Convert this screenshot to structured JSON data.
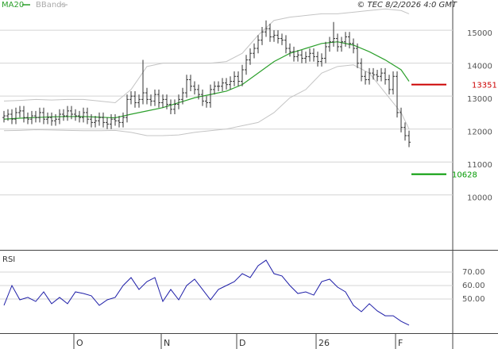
{
  "chart_data": [
    {
      "type": "ohlc",
      "source": "© TEC 8/2/2026 4:0 GMT",
      "open": [
        12350,
        12400,
        12450,
        12300,
        12500,
        12550,
        12350,
        12300,
        12400,
        12350,
        12500,
        12300,
        12350,
        12250,
        12300,
        12450,
        12400,
        12550,
        12450,
        12400,
        12350,
        12500,
        12300,
        12200,
        12250,
        12350,
        12200,
        12150,
        12300,
        12250,
        12200,
        12350,
        12900,
        13000,
        12800,
        12900,
        13100,
        12900,
        12850,
        13050,
        12800,
        12900,
        12750,
        12600,
        12750,
        12900,
        13100,
        13500,
        13300,
        13200,
        13050,
        12850,
        12800,
        13200,
        13300,
        13300,
        13400,
        13350,
        13450,
        13600,
        13450,
        13800,
        14100,
        14300,
        14450,
        14700,
        14950,
        15050,
        14800,
        14850,
        14750,
        14700,
        14450,
        14350,
        14200,
        14250,
        14150,
        14200,
        14300,
        14200,
        14050,
        14150,
        14500,
        14650,
        14750,
        14500,
        14650,
        14800,
        14600,
        14450,
        14000,
        13600,
        13500,
        13700,
        13650,
        13600,
        13700,
        13500,
        13200,
        13600,
        12500,
        12050,
        11800
      ],
      "high": [
        12550,
        12600,
        12600,
        12650,
        12700,
        12700,
        12500,
        12550,
        12550,
        12650,
        12650,
        12500,
        12500,
        12450,
        12600,
        12600,
        12700,
        12700,
        12600,
        12550,
        12650,
        12650,
        12450,
        12400,
        12500,
        12500,
        12350,
        12450,
        12450,
        12400,
        12500,
        13050,
        13150,
        13150,
        13050,
        14100,
        13250,
        13050,
        13200,
        13200,
        13050,
        13050,
        12900,
        12900,
        13050,
        13250,
        13650,
        13650,
        13450,
        13350,
        13200,
        13000,
        13350,
        13450,
        13450,
        13550,
        13550,
        13600,
        13750,
        13750,
        13950,
        14250,
        14450,
        14600,
        14850,
        15100,
        15300,
        15200,
        15000,
        15000,
        14900,
        14850,
        14600,
        14500,
        14400,
        14400,
        14350,
        14450,
        14450,
        14350,
        14300,
        14650,
        14800,
        15250,
        14900,
        14800,
        14950,
        14950,
        14750,
        14600,
        14150,
        13750,
        13850,
        13850,
        13800,
        13850,
        13850,
        13650,
        13750,
        13750,
        12650,
        12200,
        11950
      ],
      "low": [
        12200,
        12250,
        12150,
        12150,
        12350,
        12200,
        12150,
        12150,
        12200,
        12200,
        12150,
        12150,
        12100,
        12100,
        12150,
        12250,
        12250,
        12300,
        12250,
        12200,
        12200,
        12150,
        12050,
        12050,
        12100,
        12050,
        12000,
        12000,
        12100,
        12050,
        12050,
        12200,
        12750,
        12650,
        12650,
        12750,
        12750,
        12700,
        12700,
        12650,
        12650,
        12600,
        12450,
        12450,
        12600,
        12750,
        12950,
        13150,
        13050,
        12900,
        12700,
        12650,
        12650,
        13050,
        13150,
        13150,
        13200,
        13200,
        13300,
        13300,
        13300,
        13650,
        13950,
        14150,
        14300,
        14550,
        14800,
        14650,
        14650,
        14600,
        14550,
        14300,
        14200,
        14050,
        14050,
        14000,
        14000,
        14050,
        14050,
        13900,
        13900,
        14000,
        14350,
        14500,
        14350,
        14350,
        14500,
        14450,
        14300,
        13850,
        13450,
        13350,
        13350,
        13500,
        13450,
        13450,
        13350,
        13050,
        13050,
        12350,
        11900,
        11650,
        11450
      ],
      "close": [
        12400,
        12450,
        12300,
        12500,
        12550,
        12350,
        12300,
        12400,
        12350,
        12500,
        12300,
        12350,
        12250,
        12300,
        12450,
        12400,
        12550,
        12450,
        12400,
        12350,
        12500,
        12300,
        12200,
        12250,
        12350,
        12200,
        12150,
        12300,
        12250,
        12200,
        12350,
        12900,
        13000,
        12800,
        12900,
        13100,
        12900,
        12850,
        13050,
        12800,
        12900,
        12750,
        12600,
        12750,
        12900,
        13100,
        13500,
        13300,
        13200,
        13050,
        12850,
        12800,
        13200,
        13300,
        13300,
        13400,
        13350,
        13450,
        13600,
        13450,
        13800,
        14100,
        14300,
        14450,
        14700,
        14950,
        15050,
        14800,
        14850,
        14750,
        14700,
        14450,
        14350,
        14200,
        14250,
        14150,
        14200,
        14300,
        14200,
        14050,
        14150,
        14500,
        14650,
        14750,
        14500,
        14650,
        14800,
        14600,
        14450,
        14000,
        13600,
        13500,
        13700,
        13650,
        13600,
        13700,
        13500,
        13200,
        13600,
        12500,
        12050,
        11800,
        11600
      ],
      "bar_color": "#333333",
      "ma": {
        "name": "MA20",
        "color": "#2ca02c",
        "x": [
          0,
          4,
          8,
          12,
          16,
          20,
          24,
          28,
          32,
          36,
          40,
          44,
          48,
          52,
          56,
          60,
          64,
          68,
          72,
          76,
          80,
          84,
          88,
          92,
          96,
          100,
          102
        ],
        "values": [
          12300,
          12330,
          12350,
          12370,
          12380,
          12380,
          12360,
          12340,
          12450,
          12550,
          12650,
          12800,
          12950,
          13050,
          13150,
          13350,
          13700,
          14050,
          14300,
          14450,
          14600,
          14650,
          14550,
          14350,
          14100,
          13800,
          13450
        ]
      },
      "bands": {
        "name": "BBands",
        "color": "#c4c4c4",
        "x": [
          0,
          4,
          8,
          12,
          16,
          20,
          24,
          28,
          32,
          36,
          40,
          44,
          48,
          52,
          56,
          60,
          64,
          68,
          72,
          76,
          80,
          84,
          88,
          92,
          96,
          100,
          102
        ],
        "upper": [
          12850,
          12870,
          12900,
          12880,
          12900,
          12900,
          12850,
          12800,
          13200,
          13900,
          14000,
          14000,
          14000,
          14000,
          14050,
          14300,
          14850,
          15300,
          15400,
          15450,
          15500,
          15500,
          15550,
          15600,
          15650,
          15600,
          15500
        ],
        "lower": [
          11950,
          11960,
          11980,
          11970,
          11960,
          11950,
          11950,
          11960,
          11900,
          11800,
          11800,
          11820,
          11900,
          11950,
          12000,
          12100,
          12200,
          12500,
          12950,
          13200,
          13700,
          13900,
          13950,
          13700,
          13100,
          12500,
          12000
        ]
      },
      "levels": [
        {
          "value": 13351,
          "color": "#cc0000"
        },
        {
          "value": 10628,
          "color": "#009900"
        }
      ],
      "xlim": [
        -1,
        113
      ],
      "ylim": [
        8330,
        15920
      ],
      "yticks": [
        10000,
        11000,
        12000,
        13000,
        14000,
        15000
      ],
      "xticks": [
        {
          "value": 18,
          "label": "O"
        },
        {
          "value": 40,
          "label": "N"
        },
        {
          "value": 59,
          "label": "D"
        },
        {
          "value": 79,
          "label": "26"
        },
        {
          "value": 99,
          "label": "F"
        }
      ],
      "grid": true
    },
    {
      "type": "line",
      "title": "RSI",
      "color": "#1f1fa8",
      "x": [
        0,
        2,
        4,
        6,
        8,
        10,
        12,
        14,
        16,
        18,
        20,
        22,
        24,
        26,
        28,
        30,
        32,
        34,
        36,
        38,
        40,
        42,
        44,
        46,
        48,
        50,
        52,
        54,
        56,
        58,
        60,
        62,
        64,
        66,
        68,
        70,
        72,
        74,
        76,
        78,
        80,
        82,
        84,
        86,
        88,
        90,
        92,
        94,
        96,
        98,
        100,
        102
      ],
      "values": [
        45.3,
        60,
        49.4,
        51.2,
        48.2,
        55.3,
        46.5,
        51.2,
        46.5,
        55.3,
        54.1,
        52.4,
        45.3,
        49.4,
        51.2,
        60,
        65.9,
        57.1,
        62.9,
        65.9,
        48.2,
        57.1,
        49.4,
        60,
        64.7,
        57.1,
        49.4,
        57.1,
        60,
        62.9,
        68.8,
        65.9,
        74.7,
        78.8,
        68.8,
        67.1,
        60,
        54.1,
        55.3,
        52.9,
        62.9,
        64.7,
        58.8,
        55.3,
        45.3,
        40.6,
        46.5,
        41.2,
        37.6,
        37.6,
        33.5,
        30.6
      ],
      "xlim": [
        -1,
        113
      ],
      "ylim": [
        24.7,
        84.7
      ],
      "yticks": [
        {
          "value": 50,
          "label": "50.00"
        },
        {
          "value": 60,
          "label": "60.00"
        },
        {
          "value": 70,
          "label": "70.00"
        }
      ],
      "grid": true
    }
  ]
}
